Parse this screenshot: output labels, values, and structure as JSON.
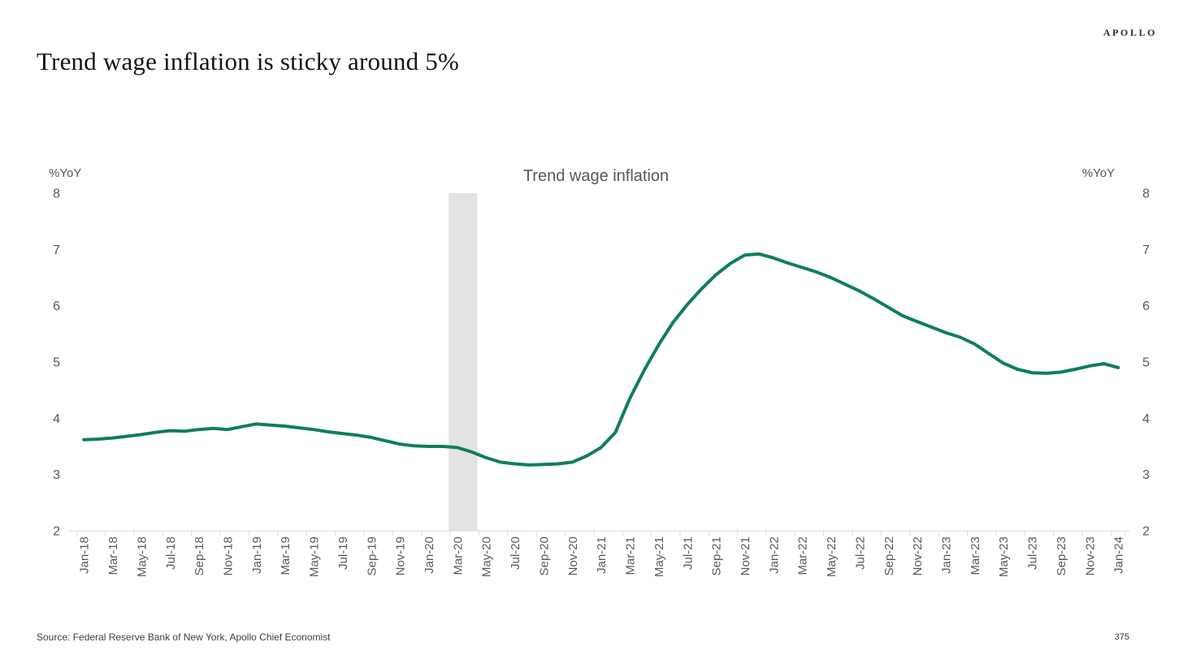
{
  "header": {
    "title": "Trend wage inflation is sticky around 5%",
    "logo": "APOLLO"
  },
  "footer": {
    "source": "Source: Federal Reserve Bank of New York, Apollo Chief Economist",
    "page_number": "375"
  },
  "chart_data": {
    "type": "line",
    "title": "Trend wage inflation",
    "unit_left": "%YoY",
    "unit_right": "%YoY",
    "ylim": [
      2,
      8
    ],
    "y_ticks": [
      8,
      7,
      6,
      5,
      4,
      3,
      2
    ],
    "grid": false,
    "legend_position": "top-center",
    "x_range": {
      "start": "Jan-18",
      "end": "Jan-24",
      "frequency": "monthly"
    },
    "x_tick_labels": [
      "Jan-18",
      "Mar-18",
      "May-18",
      "Jul-18",
      "Sep-18",
      "Nov-18",
      "Jan-19",
      "Mar-19",
      "May-19",
      "Jul-19",
      "Sep-19",
      "Nov-19",
      "Jan-20",
      "Mar-20",
      "May-20",
      "Jul-20",
      "Sep-20",
      "Nov-20",
      "Jan-21",
      "Mar-21",
      "May-21",
      "Jul-21",
      "Sep-21",
      "Nov-21",
      "Jan-22",
      "Mar-22",
      "May-22",
      "Jul-22",
      "Sep-22",
      "Nov-22",
      "Jan-23",
      "Mar-23",
      "May-23",
      "Jul-23",
      "Sep-23",
      "Nov-23",
      "Jan-24"
    ],
    "recession_band": {
      "start": "Feb-20",
      "end": "Apr-20"
    },
    "series": [
      {
        "name": "Trend wage inflation",
        "values": [
          3.62,
          3.63,
          3.65,
          3.68,
          3.71,
          3.75,
          3.78,
          3.77,
          3.8,
          3.82,
          3.8,
          3.85,
          3.9,
          3.88,
          3.86,
          3.83,
          3.8,
          3.76,
          3.73,
          3.7,
          3.66,
          3.6,
          3.54,
          3.51,
          3.5,
          3.5,
          3.48,
          3.4,
          3.3,
          3.22,
          3.19,
          3.17,
          3.18,
          3.19,
          3.22,
          3.33,
          3.48,
          3.75,
          4.35,
          4.85,
          5.3,
          5.7,
          6.02,
          6.3,
          6.55,
          6.75,
          6.9,
          6.92,
          6.85,
          6.76,
          6.68,
          6.6,
          6.5,
          6.38,
          6.26,
          6.12,
          5.97,
          5.82,
          5.72,
          5.62,
          5.52,
          5.44,
          5.32,
          5.15,
          4.98,
          4.87,
          4.81,
          4.8,
          4.82,
          4.87,
          4.93,
          4.97,
          4.9
        ]
      }
    ],
    "colors": {
      "line": "#0F7D60",
      "band": "#e3e3e3",
      "axis": "#d9d9d9",
      "labels": "#595959"
    }
  }
}
